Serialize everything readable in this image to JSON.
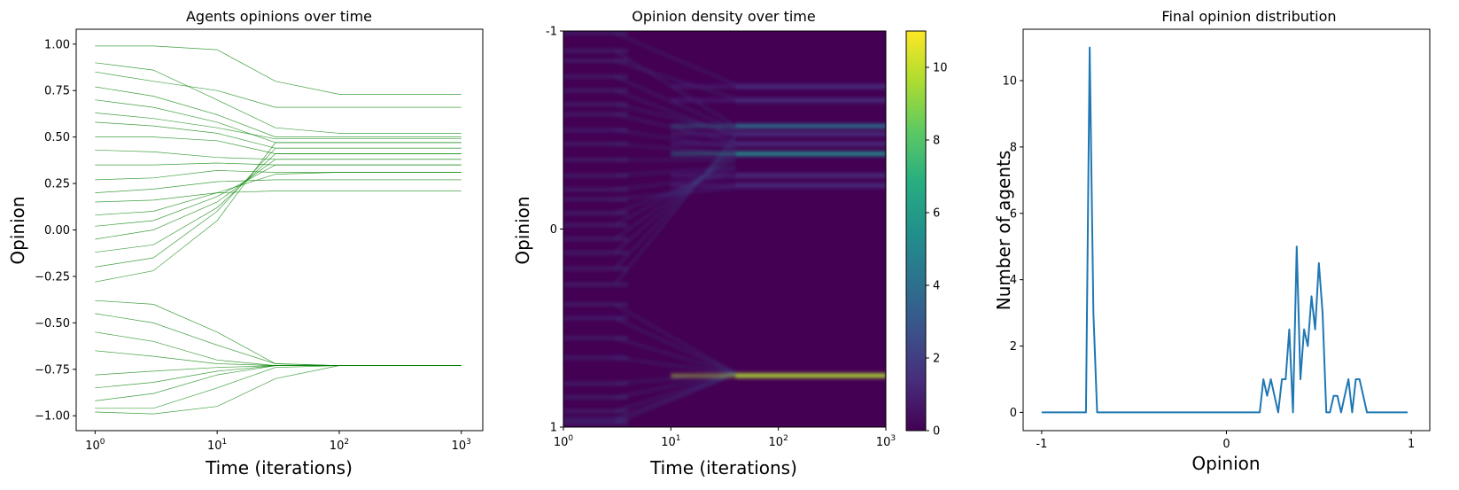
{
  "chart_data": [
    {
      "type": "line",
      "title": "Agents opinions over time",
      "xlabel": "Time (iterations)",
      "ylabel": "Opinion",
      "x_scale": "log",
      "xlim": [
        0.7,
        1500
      ],
      "ylim": [
        -1.08,
        1.08
      ],
      "x_ticks": [
        1,
        10,
        100,
        1000
      ],
      "x_tick_labels": [
        "10",
        "10",
        "10",
        "10"
      ],
      "x_tick_exponents": [
        "0",
        "1",
        "2",
        "3"
      ],
      "y_ticks": [
        1.0,
        0.75,
        0.5,
        0.25,
        0.0,
        -0.25,
        -0.5,
        -0.75,
        -1.0
      ],
      "y_tick_labels": [
        "1.00",
        "0.75",
        "0.50",
        "0.25",
        "0.00",
        "−0.25",
        "−0.50",
        "−0.75",
        "−1.00"
      ],
      "line_color": "#008000",
      "grid": false,
      "cluster_centers": [
        -0.73,
        0.21,
        0.27,
        0.31,
        0.35,
        0.38,
        0.41,
        0.44,
        0.47,
        0.49,
        0.52,
        0.58,
        0.62,
        0.66,
        0.72,
        0.73
      ],
      "series": [
        {
          "x": [
            1,
            3,
            10,
            30,
            100,
            1000
          ],
          "values": [
            0.99,
            0.99,
            0.97,
            0.8,
            0.73,
            0.73
          ]
        },
        {
          "x": [
            1,
            3,
            10,
            30,
            100,
            1000
          ],
          "values": [
            0.9,
            0.86,
            0.7,
            0.55,
            0.52,
            0.52
          ]
        },
        {
          "x": [
            1,
            3,
            10,
            30,
            100,
            1000
          ],
          "values": [
            0.85,
            0.8,
            0.75,
            0.66,
            0.66,
            0.66
          ]
        },
        {
          "x": [
            1,
            3,
            10,
            30,
            100,
            1000
          ],
          "values": [
            0.77,
            0.72,
            0.62,
            0.5,
            0.5,
            0.5
          ]
        },
        {
          "x": [
            1,
            3,
            10,
            30,
            100,
            1000
          ],
          "values": [
            0.7,
            0.66,
            0.58,
            0.47,
            0.47,
            0.47
          ]
        },
        {
          "x": [
            1,
            3,
            10,
            30,
            100,
            1000
          ],
          "values": [
            0.63,
            0.6,
            0.55,
            0.49,
            0.49,
            0.49
          ]
        },
        {
          "x": [
            1,
            3,
            10,
            30,
            100,
            1000
          ],
          "values": [
            0.58,
            0.56,
            0.52,
            0.44,
            0.44,
            0.44
          ]
        },
        {
          "x": [
            1,
            3,
            10,
            30,
            100,
            1000
          ],
          "values": [
            0.5,
            0.5,
            0.48,
            0.41,
            0.41,
            0.41
          ]
        },
        {
          "x": [
            1,
            3,
            10,
            30,
            100,
            1000
          ],
          "values": [
            0.43,
            0.42,
            0.39,
            0.38,
            0.38,
            0.38
          ]
        },
        {
          "x": [
            1,
            3,
            10,
            30,
            100,
            1000
          ],
          "values": [
            0.35,
            0.35,
            0.36,
            0.35,
            0.35,
            0.35
          ]
        },
        {
          "x": [
            1,
            3,
            10,
            30,
            100,
            1000
          ],
          "values": [
            0.27,
            0.28,
            0.32,
            0.31,
            0.31,
            0.31
          ]
        },
        {
          "x": [
            1,
            3,
            10,
            30,
            100,
            1000
          ],
          "values": [
            0.2,
            0.22,
            0.26,
            0.27,
            0.27,
            0.27
          ]
        },
        {
          "x": [
            1,
            3,
            10,
            30,
            100,
            1000
          ],
          "values": [
            0.15,
            0.16,
            0.2,
            0.21,
            0.21,
            0.21
          ]
        },
        {
          "x": [
            1,
            3,
            10,
            30,
            100,
            1000
          ],
          "values": [
            0.08,
            0.1,
            0.2,
            0.3,
            0.31,
            0.31
          ]
        },
        {
          "x": [
            1,
            3,
            10,
            30,
            100,
            1000
          ],
          "values": [
            0.02,
            0.05,
            0.18,
            0.35,
            0.35,
            0.35
          ]
        },
        {
          "x": [
            1,
            3,
            10,
            30,
            100,
            1000
          ],
          "values": [
            -0.05,
            0.0,
            0.15,
            0.38,
            0.38,
            0.38
          ]
        },
        {
          "x": [
            1,
            3,
            10,
            30,
            100,
            1000
          ],
          "values": [
            -0.12,
            -0.08,
            0.12,
            0.41,
            0.41,
            0.41
          ]
        },
        {
          "x": [
            1,
            3,
            10,
            30,
            100,
            1000
          ],
          "values": [
            -0.2,
            -0.15,
            0.1,
            0.44,
            0.44,
            0.44
          ]
        },
        {
          "x": [
            1,
            3,
            10,
            30,
            100,
            1000
          ],
          "values": [
            -0.28,
            -0.22,
            0.05,
            0.47,
            0.47,
            0.47
          ]
        },
        {
          "x": [
            1,
            3,
            10,
            30,
            100,
            1000
          ],
          "values": [
            -0.38,
            -0.4,
            -0.55,
            -0.72,
            -0.73,
            -0.73
          ]
        },
        {
          "x": [
            1,
            3,
            10,
            30,
            100,
            1000
          ],
          "values": [
            -0.45,
            -0.5,
            -0.62,
            -0.72,
            -0.73,
            -0.73
          ]
        },
        {
          "x": [
            1,
            3,
            10,
            30,
            100,
            1000
          ],
          "values": [
            -0.55,
            -0.6,
            -0.7,
            -0.73,
            -0.73,
            -0.73
          ]
        },
        {
          "x": [
            1,
            3,
            10,
            30,
            100,
            1000
          ],
          "values": [
            -0.65,
            -0.68,
            -0.72,
            -0.73,
            -0.73,
            -0.73
          ]
        },
        {
          "x": [
            1,
            3,
            10,
            30,
            100,
            1000
          ],
          "values": [
            -0.78,
            -0.76,
            -0.74,
            -0.73,
            -0.73,
            -0.73
          ]
        },
        {
          "x": [
            1,
            3,
            10,
            30,
            100,
            1000
          ],
          "values": [
            -0.85,
            -0.82,
            -0.76,
            -0.73,
            -0.73,
            -0.73
          ]
        },
        {
          "x": [
            1,
            3,
            10,
            30,
            100,
            1000
          ],
          "values": [
            -0.92,
            -0.88,
            -0.78,
            -0.73,
            -0.73,
            -0.73
          ]
        },
        {
          "x": [
            1,
            3,
            10,
            30,
            100,
            1000
          ],
          "values": [
            -0.96,
            -0.96,
            -0.85,
            -0.74,
            -0.73,
            -0.73
          ]
        },
        {
          "x": [
            1,
            3,
            10,
            30,
            100,
            1000
          ],
          "values": [
            -0.98,
            -0.99,
            -0.95,
            -0.8,
            -0.73,
            -0.73
          ]
        }
      ]
    },
    {
      "type": "heatmap",
      "title": "Opinion density over time",
      "xlabel": "Time (iterations)",
      "ylabel": "Opinion",
      "x_scale": "log",
      "xlim": [
        1,
        1000
      ],
      "ylim": [
        -1,
        1
      ],
      "x_ticks": [
        1,
        10,
        100,
        1000
      ],
      "x_tick_labels": [
        "10",
        "10",
        "10",
        "10"
      ],
      "x_tick_exponents": [
        "0",
        "1",
        "2",
        "3"
      ],
      "y_ticks": [
        -1,
        0,
        1
      ],
      "y_tick_labels": [
        "-1",
        "0",
        "1"
      ],
      "colormap": "viridis",
      "colorbar_range": [
        0,
        11
      ],
      "colorbar_ticks": [
        0,
        2,
        4,
        6,
        8,
        10
      ],
      "colorbar_tick_labels": [
        "0",
        "2",
        "4",
        "6",
        "8",
        "10"
      ],
      "final_bands": [
        {
          "opinion": 0.74,
          "density": 10
        },
        {
          "opinion": -0.52,
          "density": 4
        },
        {
          "opinion": -0.38,
          "density": 5
        },
        {
          "opinion": -0.43,
          "density": 2
        },
        {
          "opinion": -0.48,
          "density": 2
        },
        {
          "opinion": -0.27,
          "density": 1
        },
        {
          "opinion": -0.22,
          "density": 1
        },
        {
          "opinion": -0.65,
          "density": 1
        },
        {
          "opinion": -0.72,
          "density": 1
        }
      ]
    },
    {
      "type": "line",
      "title": "Final opinion distribution",
      "xlabel": "Opinion",
      "ylabel": "Number of agents",
      "xlim": [
        -1.1,
        1.1
      ],
      "ylim": [
        -0.55,
        11.55
      ],
      "x_ticks": [
        -1,
        0,
        1
      ],
      "x_tick_labels": [
        "-1",
        "0",
        "1"
      ],
      "y_ticks": [
        0,
        2,
        4,
        6,
        8,
        10
      ],
      "y_tick_labels": [
        "0",
        "2",
        "4",
        "6",
        "8",
        "10"
      ],
      "line_color": "#1f77b4",
      "grid": false,
      "x": [
        -1.0,
        -0.76,
        -0.74,
        -0.72,
        -0.7,
        0.18,
        0.2,
        0.22,
        0.24,
        0.26,
        0.28,
        0.3,
        0.32,
        0.34,
        0.36,
        0.38,
        0.4,
        0.42,
        0.44,
        0.46,
        0.48,
        0.5,
        0.52,
        0.54,
        0.56,
        0.58,
        0.6,
        0.62,
        0.64,
        0.66,
        0.68,
        0.7,
        0.72,
        0.74,
        0.76,
        0.98
      ],
      "values": [
        0,
        0,
        11,
        3,
        0,
        0,
        1,
        0.5,
        1,
        0.5,
        0,
        1,
        1,
        2.5,
        0,
        5,
        1,
        2.5,
        2,
        3.5,
        2.5,
        4.5,
        3,
        0,
        0,
        0.5,
        0.5,
        0,
        0.5,
        1,
        0,
        1,
        1,
        0.5,
        0,
        0
      ]
    }
  ]
}
